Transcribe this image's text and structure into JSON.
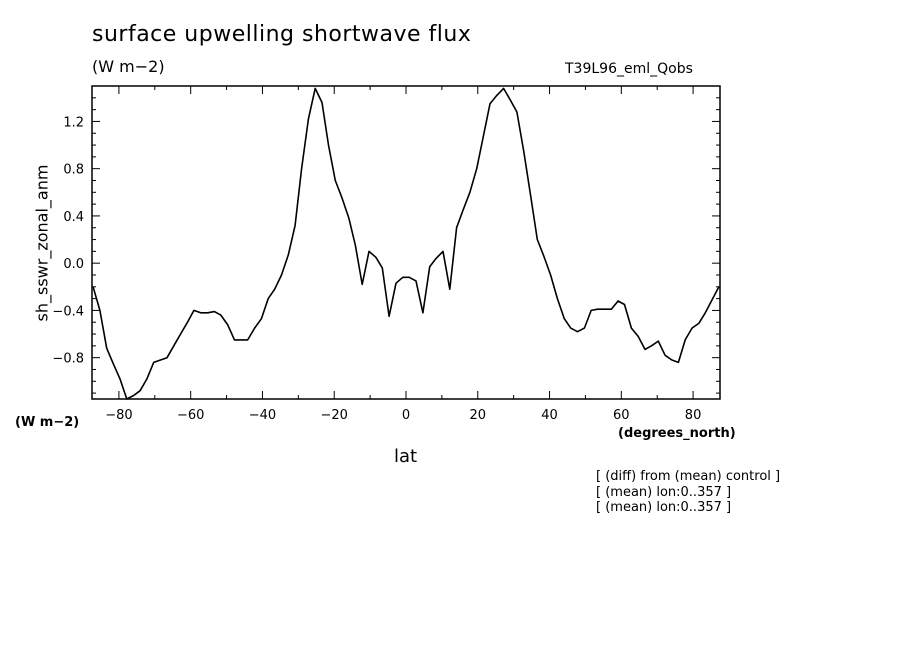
{
  "header": {
    "title": "surface upwelling shortwave flux",
    "units": "(W m−2)",
    "experiment": "T39L96_eml_Qobs"
  },
  "axes": {
    "y_units_note": "(W m−2)",
    "x_units_note": "(degrees_north)"
  },
  "notes": [
    "[ (diff) from (mean) control ]",
    "[ (mean) lon:0..357 ]",
    "[ (mean) lon:0..357 ]"
  ],
  "chart_data": {
    "type": "line",
    "title": "surface upwelling shortwave flux",
    "xlabel": "lat",
    "ylabel": "sh_sswr_zonal_anm",
    "xlim": [
      -87.5,
      87.5
    ],
    "ylim": [
      -1.15,
      1.5
    ],
    "xticks": [
      -80,
      -60,
      -40,
      -20,
      0,
      20,
      40,
      60,
      80
    ],
    "xtick_labels": [
      "−80",
      "−60",
      "−40",
      "−20",
      "0",
      "20",
      "40",
      "60",
      "80"
    ],
    "yticks": [
      -0.8,
      -0.4,
      0.0,
      0.4,
      0.8,
      1.2
    ],
    "ytick_labels": [
      "−0.8",
      "−0.4",
      "0.0",
      "0.4",
      "0.8",
      "1.2"
    ],
    "grid": false,
    "series": [
      {
        "color": "#000000",
        "x": [
          -87.2,
          -85.3,
          -83.4,
          -81.6,
          -79.7,
          -77.8,
          -75.9,
          -74.1,
          -72.2,
          -70.3,
          -68.4,
          -66.6,
          -64.7,
          -62.8,
          -60.9,
          -59.1,
          -57.2,
          -55.3,
          -53.4,
          -51.6,
          -49.7,
          -47.8,
          -45.9,
          -44.1,
          -42.2,
          -40.3,
          -38.4,
          -36.6,
          -34.7,
          -32.8,
          -30.9,
          -29.1,
          -27.2,
          -25.3,
          -23.4,
          -21.6,
          -19.7,
          -17.8,
          -15.9,
          -14.1,
          -12.2,
          -10.3,
          -8.4,
          -6.6,
          -4.7,
          -2.8,
          -0.9,
          0.9,
          2.8,
          4.7,
          6.6,
          8.4,
          10.3,
          12.2,
          14.1,
          15.9,
          17.8,
          19.7,
          21.6,
          23.4,
          25.3,
          27.2,
          29.1,
          30.9,
          32.8,
          34.7,
          36.6,
          38.4,
          40.3,
          42.2,
          44.1,
          45.9,
          47.8,
          49.7,
          51.6,
          53.4,
          55.3,
          57.2,
          59.1,
          60.9,
          62.8,
          64.7,
          66.6,
          68.4,
          70.3,
          72.2,
          74.1,
          75.9,
          77.8,
          79.7,
          81.6,
          83.4,
          85.3,
          87.2
        ],
        "y": [
          -0.2,
          -0.4,
          -0.72,
          -0.85,
          -0.98,
          -1.15,
          -1.12,
          -1.08,
          -0.98,
          -0.84,
          -0.82,
          -0.8,
          -0.7,
          -0.6,
          -0.5,
          -0.4,
          -0.42,
          -0.42,
          -0.41,
          -0.44,
          -0.52,
          -0.65,
          -0.65,
          -0.65,
          -0.55,
          -0.47,
          -0.3,
          -0.22,
          -0.1,
          0.07,
          0.32,
          0.8,
          1.22,
          1.48,
          1.36,
          1.0,
          0.7,
          0.55,
          0.38,
          0.15,
          -0.18,
          0.1,
          0.05,
          -0.04,
          -0.45,
          -0.17,
          -0.12,
          -0.12,
          -0.15,
          -0.42,
          -0.03,
          0.04,
          0.1,
          -0.22,
          0.3,
          0.45,
          0.6,
          0.8,
          1.08,
          1.35,
          1.42,
          1.48,
          1.38,
          1.28,
          0.95,
          0.58,
          0.2,
          0.06,
          -0.1,
          -0.3,
          -0.47,
          -0.55,
          -0.58,
          -0.55,
          -0.4,
          -0.39,
          -0.39,
          -0.39,
          -0.32,
          -0.35,
          -0.55,
          -0.62,
          -0.73,
          -0.7,
          -0.66,
          -0.78,
          -0.82,
          -0.84,
          -0.65,
          -0.55,
          -0.51,
          -0.42,
          -0.31,
          -0.2
        ]
      }
    ]
  }
}
